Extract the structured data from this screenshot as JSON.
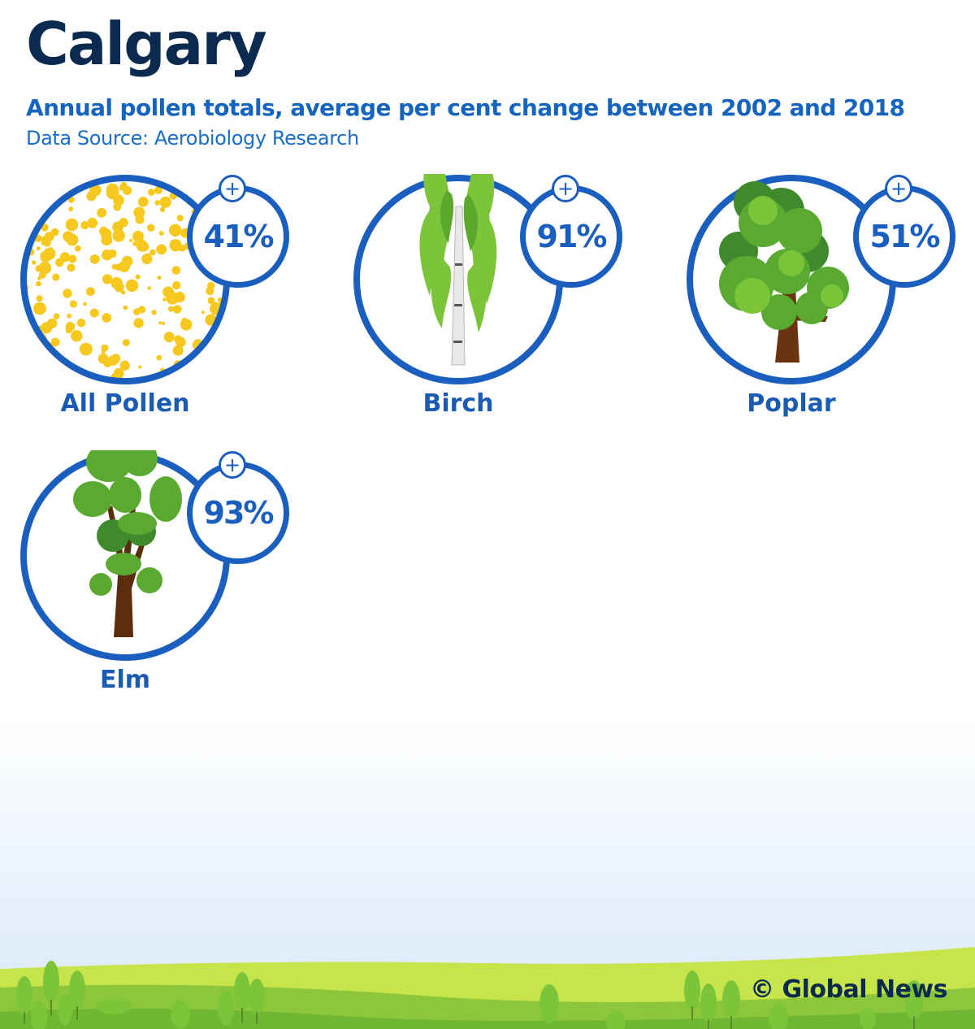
{
  "header": {
    "title": "Calgary",
    "subtitle": "Annual pollen totals, average per cent change between 2002 and 2018",
    "source": "Data Source: Aerobiology Research"
  },
  "items": [
    {
      "label": "All Pollen",
      "value": "41%",
      "sign": "+",
      "icon": "pollen-dots-icon"
    },
    {
      "label": "Birch",
      "value": "91%",
      "sign": "+",
      "icon": "birch-tree-icon"
    },
    {
      "label": "Poplar",
      "value": "51%",
      "sign": "+",
      "icon": "poplar-tree-icon"
    },
    {
      "label": "Elm",
      "value": "93%",
      "sign": "+",
      "icon": "elm-tree-icon"
    }
  ],
  "footer": {
    "credit": "© Global News"
  },
  "colors": {
    "navy": "#0b2a4f",
    "blue": "#1a5fbf",
    "pollen": "#f7c81e",
    "leaf": "#5fae3a",
    "grass": "#a8d63a"
  }
}
